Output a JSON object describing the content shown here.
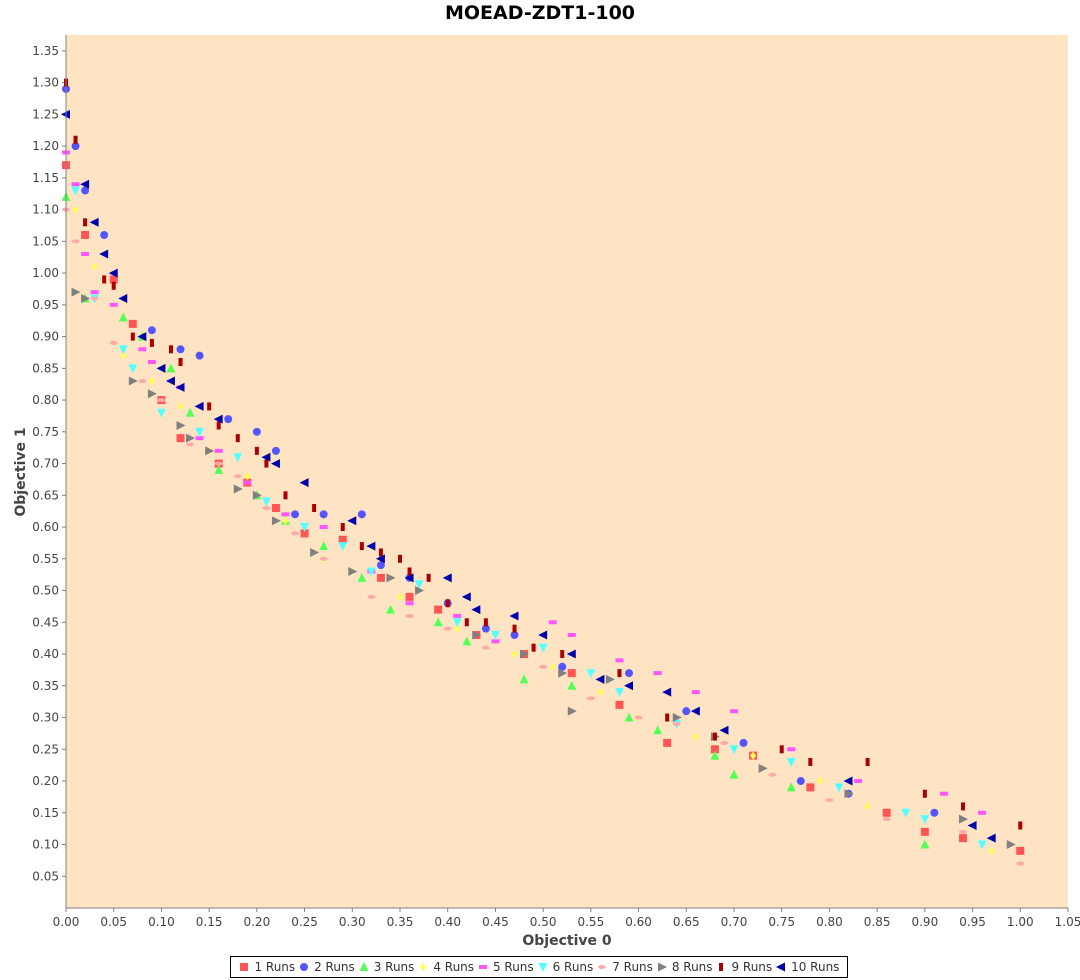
{
  "chart_data": {
    "type": "scatter",
    "title": "MOEAD-ZDT1-100",
    "xlabel": "Objective 0",
    "ylabel": "Objective 1",
    "xlim": [
      0.0,
      1.05
    ],
    "ylim": [
      0.0,
      1.375
    ],
    "xticks": [
      "0.00",
      "0.05",
      "0.10",
      "0.15",
      "0.20",
      "0.25",
      "0.30",
      "0.35",
      "0.40",
      "0.45",
      "0.50",
      "0.55",
      "0.60",
      "0.65",
      "0.70",
      "0.75",
      "0.80",
      "0.85",
      "0.90",
      "0.95",
      "1.00",
      "1.05"
    ],
    "yticks": [
      "0.05",
      "0.10",
      "0.15",
      "0.20",
      "0.25",
      "0.30",
      "0.35",
      "0.40",
      "0.45",
      "0.50",
      "0.55",
      "0.60",
      "0.65",
      "0.70",
      "0.75",
      "0.80",
      "0.85",
      "0.90",
      "0.95",
      "1.00",
      "1.05",
      "1.10",
      "1.15",
      "1.20",
      "1.25",
      "1.30",
      "1.35"
    ],
    "background": "#ffe4c4",
    "legend_placement": "bottom",
    "series": [
      {
        "name": "1 Runs",
        "color": "#ff5555",
        "marker": "square",
        "x": [
          0.0,
          0.02,
          0.05,
          0.07,
          0.1,
          0.12,
          0.16,
          0.19,
          0.22,
          0.25,
          0.29,
          0.33,
          0.36,
          0.39,
          0.43,
          0.48,
          0.53,
          0.58,
          0.63,
          0.68,
          0.72,
          0.78,
          0.86,
          0.9,
          0.94,
          1.0
        ],
        "y": [
          1.17,
          1.06,
          0.99,
          0.92,
          0.8,
          0.74,
          0.7,
          0.67,
          0.63,
          0.59,
          0.58,
          0.52,
          0.49,
          0.47,
          0.43,
          0.4,
          0.37,
          0.32,
          0.26,
          0.25,
          0.24,
          0.19,
          0.15,
          0.12,
          0.11,
          0.09
        ]
      },
      {
        "name": "2 Runs",
        "color": "#5555ff",
        "marker": "circle",
        "x": [
          0.0,
          0.01,
          0.02,
          0.04,
          0.09,
          0.12,
          0.14,
          0.17,
          0.2,
          0.22,
          0.24,
          0.27,
          0.31,
          0.33,
          0.36,
          0.4,
          0.44,
          0.47,
          0.52,
          0.59,
          0.65,
          0.71,
          0.77,
          0.82,
          0.91
        ],
        "y": [
          1.29,
          1.2,
          1.13,
          1.06,
          0.91,
          0.88,
          0.87,
          0.77,
          0.75,
          0.72,
          0.62,
          0.62,
          0.62,
          0.54,
          0.52,
          0.48,
          0.44,
          0.43,
          0.38,
          0.37,
          0.31,
          0.26,
          0.2,
          0.18,
          0.15
        ]
      },
      {
        "name": "3 Runs",
        "color": "#55ff55",
        "marker": "triangle-up",
        "x": [
          0.0,
          0.02,
          0.06,
          0.08,
          0.11,
          0.13,
          0.16,
          0.2,
          0.23,
          0.27,
          0.31,
          0.34,
          0.39,
          0.42,
          0.48,
          0.53,
          0.59,
          0.62,
          0.68,
          0.7,
          0.76,
          0.9
        ],
        "y": [
          1.12,
          0.96,
          0.93,
          0.9,
          0.85,
          0.78,
          0.69,
          0.65,
          0.61,
          0.57,
          0.52,
          0.47,
          0.45,
          0.42,
          0.36,
          0.35,
          0.3,
          0.28,
          0.24,
          0.21,
          0.19,
          0.1
        ]
      },
      {
        "name": "4 Runs",
        "color": "#ffff55",
        "marker": "diamond",
        "x": [
          0.01,
          0.03,
          0.06,
          0.09,
          0.12,
          0.15,
          0.19,
          0.23,
          0.27,
          0.3,
          0.35,
          0.41,
          0.47,
          0.51,
          0.56,
          0.6,
          0.66,
          0.72,
          0.79,
          0.84,
          0.97
        ],
        "y": [
          1.1,
          1.01,
          0.87,
          0.83,
          0.79,
          0.72,
          0.68,
          0.61,
          0.55,
          0.53,
          0.49,
          0.44,
          0.4,
          0.38,
          0.34,
          0.3,
          0.27,
          0.24,
          0.2,
          0.16,
          0.09
        ]
      },
      {
        "name": "5 Runs",
        "color": "#ff55ff",
        "marker": "dash",
        "x": [
          0.0,
          0.01,
          0.02,
          0.03,
          0.05,
          0.08,
          0.09,
          0.12,
          0.14,
          0.16,
          0.19,
          0.23,
          0.27,
          0.32,
          0.36,
          0.41,
          0.45,
          0.51,
          0.53,
          0.58,
          0.62,
          0.66,
          0.7,
          0.76,
          0.83,
          0.92,
          0.96
        ],
        "y": [
          1.19,
          1.14,
          1.03,
          0.97,
          0.95,
          0.88,
          0.86,
          0.82,
          0.74,
          0.72,
          0.67,
          0.62,
          0.6,
          0.53,
          0.48,
          0.46,
          0.42,
          0.45,
          0.43,
          0.39,
          0.37,
          0.34,
          0.31,
          0.25,
          0.2,
          0.18,
          0.15
        ]
      },
      {
        "name": "6 Runs",
        "color": "#55ffff",
        "marker": "triangle-down",
        "x": [
          0.01,
          0.03,
          0.06,
          0.07,
          0.1,
          0.14,
          0.18,
          0.21,
          0.25,
          0.29,
          0.32,
          0.37,
          0.41,
          0.45,
          0.5,
          0.55,
          0.58,
          0.64,
          0.7,
          0.76,
          0.81,
          0.88,
          0.9,
          0.96
        ],
        "y": [
          1.13,
          0.96,
          0.88,
          0.85,
          0.78,
          0.75,
          0.71,
          0.64,
          0.6,
          0.57,
          0.53,
          0.51,
          0.45,
          0.43,
          0.41,
          0.37,
          0.34,
          0.29,
          0.25,
          0.23,
          0.19,
          0.15,
          0.14,
          0.1
        ]
      },
      {
        "name": "7 Runs",
        "color": "#ffaaaa",
        "marker": "ellipse",
        "x": [
          0.0,
          0.01,
          0.03,
          0.05,
          0.08,
          0.1,
          0.13,
          0.16,
          0.18,
          0.21,
          0.24,
          0.27,
          0.32,
          0.36,
          0.4,
          0.44,
          0.5,
          0.55,
          0.6,
          0.64,
          0.69,
          0.74,
          0.8,
          0.86,
          0.94,
          1.0
        ],
        "y": [
          1.1,
          1.05,
          0.96,
          0.89,
          0.83,
          0.8,
          0.73,
          0.7,
          0.68,
          0.63,
          0.59,
          0.55,
          0.49,
          0.46,
          0.44,
          0.41,
          0.38,
          0.33,
          0.3,
          0.29,
          0.26,
          0.21,
          0.17,
          0.14,
          0.12,
          0.07
        ]
      },
      {
        "name": "8 Runs",
        "color": "#808080",
        "marker": "triangle-right",
        "x": [
          0.01,
          0.02,
          0.07,
          0.09,
          0.12,
          0.13,
          0.15,
          0.18,
          0.2,
          0.22,
          0.26,
          0.3,
          0.34,
          0.37,
          0.43,
          0.48,
          0.52,
          0.53,
          0.57,
          0.64,
          0.68,
          0.73,
          0.82,
          0.94,
          0.99
        ],
        "y": [
          0.97,
          0.96,
          0.83,
          0.81,
          0.76,
          0.74,
          0.72,
          0.66,
          0.65,
          0.61,
          0.56,
          0.53,
          0.52,
          0.5,
          0.43,
          0.4,
          0.37,
          0.31,
          0.36,
          0.3,
          0.27,
          0.22,
          0.18,
          0.14,
          0.1
        ]
      },
      {
        "name": "9 Runs",
        "color": "#aa0000",
        "marker": "bar",
        "x": [
          0.0,
          0.01,
          0.02,
          0.04,
          0.05,
          0.07,
          0.09,
          0.11,
          0.12,
          0.15,
          0.16,
          0.18,
          0.2,
          0.21,
          0.23,
          0.26,
          0.29,
          0.31,
          0.33,
          0.35,
          0.36,
          0.38,
          0.4,
          0.42,
          0.44,
          0.47,
          0.49,
          0.52,
          0.58,
          0.63,
          0.68,
          0.75,
          0.78,
          0.84,
          0.9,
          0.94,
          1.0
        ],
        "y": [
          1.3,
          1.21,
          1.08,
          0.99,
          0.98,
          0.9,
          0.89,
          0.88,
          0.86,
          0.79,
          0.76,
          0.74,
          0.72,
          0.7,
          0.65,
          0.63,
          0.6,
          0.57,
          0.56,
          0.55,
          0.53,
          0.52,
          0.48,
          0.45,
          0.45,
          0.44,
          0.41,
          0.4,
          0.37,
          0.3,
          0.27,
          0.25,
          0.23,
          0.23,
          0.18,
          0.16,
          0.13
        ]
      },
      {
        "name": "10 Runs",
        "color": "#0000aa",
        "marker": "triangle-left",
        "x": [
          0.0,
          0.02,
          0.03,
          0.04,
          0.05,
          0.06,
          0.08,
          0.1,
          0.11,
          0.12,
          0.14,
          0.16,
          0.21,
          0.22,
          0.25,
          0.3,
          0.32,
          0.33,
          0.36,
          0.4,
          0.42,
          0.43,
          0.47,
          0.5,
          0.53,
          0.56,
          0.59,
          0.63,
          0.66,
          0.69,
          0.82,
          0.95,
          0.97
        ],
        "y": [
          1.25,
          1.14,
          1.08,
          1.03,
          1.0,
          0.96,
          0.9,
          0.85,
          0.83,
          0.82,
          0.79,
          0.77,
          0.71,
          0.7,
          0.67,
          0.61,
          0.57,
          0.55,
          0.52,
          0.52,
          0.49,
          0.47,
          0.46,
          0.43,
          0.4,
          0.36,
          0.35,
          0.34,
          0.31,
          0.28,
          0.2,
          0.13,
          0.11
        ]
      }
    ]
  }
}
